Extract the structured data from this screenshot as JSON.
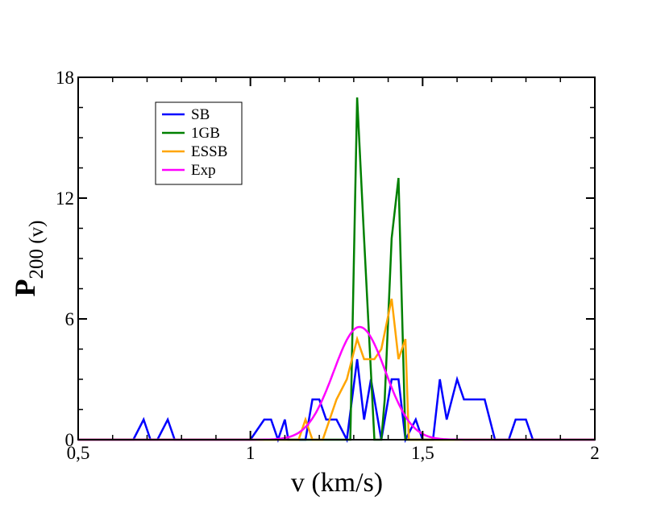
{
  "chart_data": {
    "type": "line",
    "title": "",
    "xlabel": "v (km/s)",
    "ylabel": {
      "main": "P",
      "sub": "200 (v)"
    },
    "xlim": [
      0.5,
      2.0
    ],
    "ylim": [
      0,
      18
    ],
    "xticks": [
      {
        "value": 0.5,
        "label": "0,5"
      },
      {
        "value": 1.0,
        "label": "1"
      },
      {
        "value": 1.5,
        "label": "1,5"
      },
      {
        "value": 2.0,
        "label": "2"
      }
    ],
    "yticks": [
      {
        "value": 0,
        "label": "0"
      },
      {
        "value": 6,
        "label": "6"
      },
      {
        "value": 12,
        "label": "12"
      },
      {
        "value": 18,
        "label": "18"
      }
    ],
    "legend_position": "top-left",
    "series": [
      {
        "name": "SB",
        "color": "#0000ff",
        "x": [
          0.5,
          0.66,
          0.69,
          0.71,
          0.73,
          0.76,
          0.78,
          1.0,
          1.04,
          1.06,
          1.08,
          1.1,
          1.11,
          1.14,
          1.16,
          1.18,
          1.2,
          1.22,
          1.23,
          1.25,
          1.28,
          1.31,
          1.33,
          1.35,
          1.38,
          1.41,
          1.43,
          1.45,
          1.48,
          1.5,
          1.53,
          1.55,
          1.57,
          1.6,
          1.62,
          1.64,
          1.66,
          1.68,
          1.71,
          1.73,
          1.75,
          1.77,
          1.78,
          1.8,
          1.82,
          2.0
        ],
        "y": [
          0,
          0,
          1,
          0,
          0,
          1,
          0,
          0,
          1,
          1,
          0,
          1,
          0,
          0,
          0,
          2,
          2,
          1,
          1,
          1,
          0,
          4,
          1,
          3,
          0,
          3,
          3,
          0,
          1,
          0,
          0,
          3,
          1,
          3,
          2,
          2,
          2,
          2,
          0,
          0,
          0,
          1,
          1,
          1,
          0,
          0
        ]
      },
      {
        "name": "1GB",
        "color": "#008000",
        "x": [
          0.5,
          1.28,
          1.29,
          1.31,
          1.33,
          1.36,
          1.38,
          1.39,
          1.41,
          1.43,
          1.45,
          1.46,
          2.0
        ],
        "y": [
          0,
          0,
          0,
          17,
          10,
          0,
          0,
          2,
          10,
          13,
          0,
          0,
          0
        ],
        "note": "green segment at 1.29 is drawn vertical to peak"
      },
      {
        "name": "ESSB",
        "color": "#ffa500",
        "x": [
          0.5,
          1.14,
          1.16,
          1.18,
          1.2,
          1.21,
          1.25,
          1.28,
          1.31,
          1.33,
          1.36,
          1.38,
          1.41,
          1.43,
          1.45,
          1.46,
          1.5,
          2.0
        ],
        "y": [
          0,
          0,
          1,
          0,
          0,
          0,
          2,
          3,
          5,
          4,
          4,
          4.5,
          7,
          4,
          5,
          0,
          0,
          0
        ]
      },
      {
        "name": "Exp",
        "color": "#ff00ff",
        "gaussian": {
          "mean": 1.317,
          "sigma": 0.075,
          "peak": 5.6
        },
        "x_range": [
          0.5,
          2.0
        ]
      }
    ]
  }
}
